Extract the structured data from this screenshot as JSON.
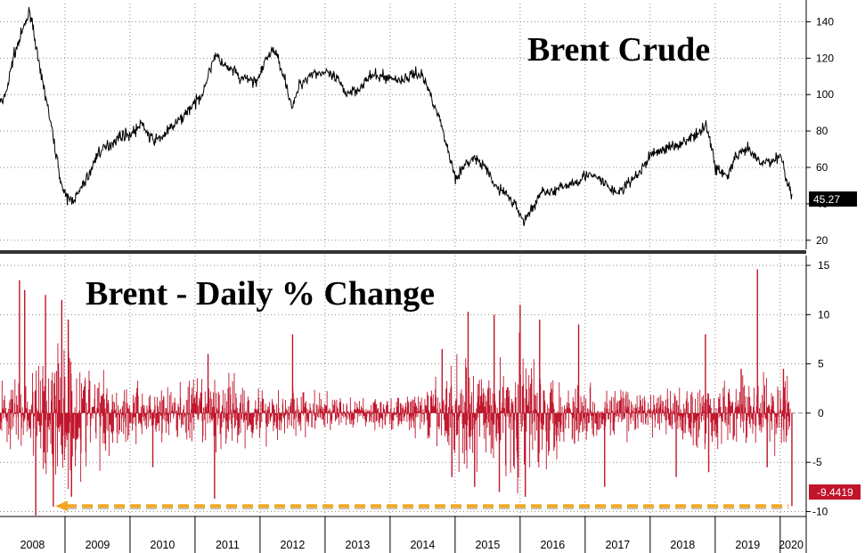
{
  "colors": {
    "price_line": "#000000",
    "change_bars": "#c0142a",
    "grid": "#8a8a8a",
    "annotation_arrow": "#f5a623",
    "price_badge": "#000000",
    "change_badge": "#c0142a",
    "divider": "#333333"
  },
  "chart_data": [
    {
      "type": "line",
      "title": "Brent Crude",
      "xlabel": "",
      "ylabel": "",
      "x_range": [
        2008.0,
        2020.4
      ],
      "ylim": [
        15,
        150
      ],
      "y_ticks": [
        20,
        40,
        60,
        80,
        100,
        120,
        140
      ],
      "grid": true,
      "last_value_label": "45.27",
      "series": [
        {
          "x": [
            2008.0,
            2008.04,
            2008.12,
            2008.2,
            2008.3,
            2008.4,
            2008.46,
            2008.5,
            2008.55,
            2008.6,
            2008.7,
            2008.8,
            2008.9,
            2008.95,
            2009.0,
            2009.1,
            2009.2,
            2009.3,
            2009.4,
            2009.5,
            2009.6,
            2009.7,
            2009.8,
            2009.9,
            2010.0,
            2010.2,
            2010.3,
            2010.4,
            2010.5,
            2010.7,
            2010.8,
            2010.9,
            2011.0,
            2011.1,
            2011.2,
            2011.3,
            2011.4,
            2011.5,
            2011.6,
            2011.7,
            2011.8,
            2011.9,
            2012.0,
            2012.1,
            2012.2,
            2012.3,
            2012.4,
            2012.5,
            2012.6,
            2012.8,
            2013.0,
            2013.2,
            2013.3,
            2013.5,
            2013.7,
            2013.9,
            2014.0,
            2014.2,
            2014.4,
            2014.5,
            2014.6,
            2014.7,
            2014.8,
            2014.9,
            2015.0,
            2015.1,
            2015.2,
            2015.3,
            2015.4,
            2015.5,
            2015.6,
            2015.7,
            2015.8,
            2015.9,
            2016.0,
            2016.05,
            2016.1,
            2016.2,
            2016.3,
            2016.4,
            2016.5,
            2016.7,
            2016.9,
            2017.0,
            2017.2,
            2017.4,
            2017.5,
            2017.7,
            2017.9,
            2018.0,
            2018.2,
            2018.4,
            2018.6,
            2018.75,
            2018.85,
            2018.95,
            2019.0,
            2019.2,
            2019.3,
            2019.5,
            2019.7,
            2019.9,
            2020.0,
            2020.05,
            2020.1,
            2020.18
          ],
          "values": [
            98,
            95,
            105,
            120,
            130,
            140,
            146,
            139,
            128,
            115,
            100,
            80,
            60,
            50,
            44,
            42,
            45,
            52,
            58,
            68,
            70,
            73,
            76,
            78,
            78,
            84,
            76,
            75,
            77,
            84,
            87,
            92,
            95,
            100,
            110,
            122,
            118,
            114,
            113,
            108,
            109,
            107,
            110,
            120,
            125,
            118,
            106,
            92,
            105,
            112,
            112,
            108,
            101,
            103,
            110,
            110,
            109,
            108,
            112,
            110,
            102,
            93,
            82,
            68,
            55,
            58,
            63,
            65,
            62,
            58,
            50,
            48,
            45,
            40,
            35,
            30,
            33,
            38,
            45,
            48,
            46,
            50,
            53,
            56,
            54,
            48,
            46,
            52,
            60,
            67,
            70,
            72,
            76,
            78,
            85,
            70,
            60,
            55,
            65,
            70,
            62,
            64,
            67,
            62,
            52,
            45.27
          ]
        }
      ]
    },
    {
      "type": "bar",
      "title": "Brent - Daily % Change",
      "xlabel": "",
      "ylabel": "",
      "x_range": [
        2008.0,
        2020.4
      ],
      "ylim": [
        -10.5,
        16
      ],
      "y_ticks": [
        -10,
        -5,
        0,
        5,
        10,
        15
      ],
      "grid": true,
      "x_ticks": [
        "2008",
        "2009",
        "2010",
        "2011",
        "2012",
        "2013",
        "2014",
        "2015",
        "2016",
        "2017",
        "2018",
        "2019",
        "2020"
      ],
      "last_value_label": "-9.4419",
      "annotation": "dashed arrow marking the -9.4419 level back to 2008",
      "volatility_x": [
        2008.0,
        2008.3,
        2008.6,
        2008.8,
        2009.0,
        2009.3,
        2009.6,
        2010.0,
        2010.5,
        2011.0,
        2011.5,
        2012.0,
        2012.5,
        2013.0,
        2013.5,
        2014.0,
        2014.5,
        2014.8,
        2015.0,
        2015.3,
        2015.7,
        2016.0,
        2016.3,
        2016.7,
        2017.0,
        2017.5,
        2018.0,
        2018.5,
        2018.8,
        2019.0,
        2019.5,
        2020.0
      ],
      "volatility_values": [
        1.6,
        1.8,
        2.4,
        4.5,
        4.0,
        2.6,
        2.0,
        1.5,
        1.3,
        1.6,
        1.8,
        1.4,
        1.2,
        0.9,
        0.8,
        0.8,
        1.0,
        2.0,
        2.6,
        2.2,
        2.4,
        3.5,
        2.6,
        1.9,
        1.3,
        1.1,
        1.2,
        1.4,
        2.0,
        1.6,
        1.6,
        1.7
      ],
      "spikes": [
        {
          "x": 2008.3,
          "value": 13.5
        },
        {
          "x": 2008.38,
          "value": 12.5
        },
        {
          "x": 2008.55,
          "value": -10.4
        },
        {
          "x": 2008.7,
          "value": 12.0
        },
        {
          "x": 2008.82,
          "value": -9.5
        },
        {
          "x": 2008.95,
          "value": 11.5
        },
        {
          "x": 2009.05,
          "value": 9.5
        },
        {
          "x": 2009.1,
          "value": -8.5
        },
        {
          "x": 2010.35,
          "value": -5.5
        },
        {
          "x": 2011.2,
          "value": 6.0
        },
        {
          "x": 2011.3,
          "value": -8.7
        },
        {
          "x": 2012.5,
          "value": 8.0
        },
        {
          "x": 2014.8,
          "value": 6.5
        },
        {
          "x": 2014.95,
          "value": -6.5
        },
        {
          "x": 2015.2,
          "value": 10.3
        },
        {
          "x": 2015.3,
          "value": -7.5
        },
        {
          "x": 2015.6,
          "value": 10.0
        },
        {
          "x": 2015.68,
          "value": -8.0
        },
        {
          "x": 2016.0,
          "value": 11.0
        },
        {
          "x": 2016.08,
          "value": -8.5
        },
        {
          "x": 2016.3,
          "value": 9.5
        },
        {
          "x": 2016.9,
          "value": 9.0
        },
        {
          "x": 2017.3,
          "value": -7.5
        },
        {
          "x": 2018.4,
          "value": -6.5
        },
        {
          "x": 2018.85,
          "value": 8.0
        },
        {
          "x": 2018.9,
          "value": -6.0
        },
        {
          "x": 2019.4,
          "value": 4.5
        },
        {
          "x": 2019.65,
          "value": 14.6
        },
        {
          "x": 2019.8,
          "value": -5.5
        },
        {
          "x": 2020.05,
          "value": 4.5
        },
        {
          "x": 2020.18,
          "value": -9.4419
        }
      ]
    }
  ]
}
